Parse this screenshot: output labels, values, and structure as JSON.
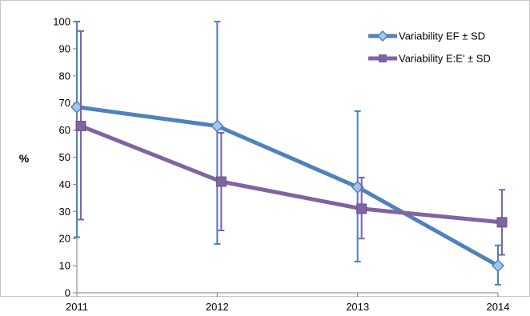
{
  "chart_data": {
    "type": "line",
    "title": "",
    "xlabel": "",
    "ylabel": "%",
    "x": [
      "2011",
      "2012",
      "2013",
      "2014"
    ],
    "ylim": [
      0,
      100
    ],
    "yticks": [
      "0",
      "10",
      "20",
      "30",
      "40",
      "50",
      "60",
      "70",
      "80",
      "90",
      "100"
    ],
    "grid": false,
    "legend_position": "top-right",
    "series": [
      {
        "name": "Variability EF ± SD",
        "color": "#4f81bd",
        "marker": "diamond",
        "values": [
          68.5,
          61.5,
          39,
          10
        ],
        "error_low": [
          20.5,
          18,
          11.5,
          3
        ],
        "error_high": [
          100,
          100,
          67,
          17.5
        ]
      },
      {
        "name": "Variability E:E' ± SD",
        "color": "#8064a2",
        "marker": "square",
        "values": [
          61.5,
          41,
          31,
          26
        ],
        "error_low": [
          27,
          23,
          20,
          14
        ],
        "error_high": [
          96.5,
          59,
          42.5,
          38
        ]
      }
    ]
  }
}
